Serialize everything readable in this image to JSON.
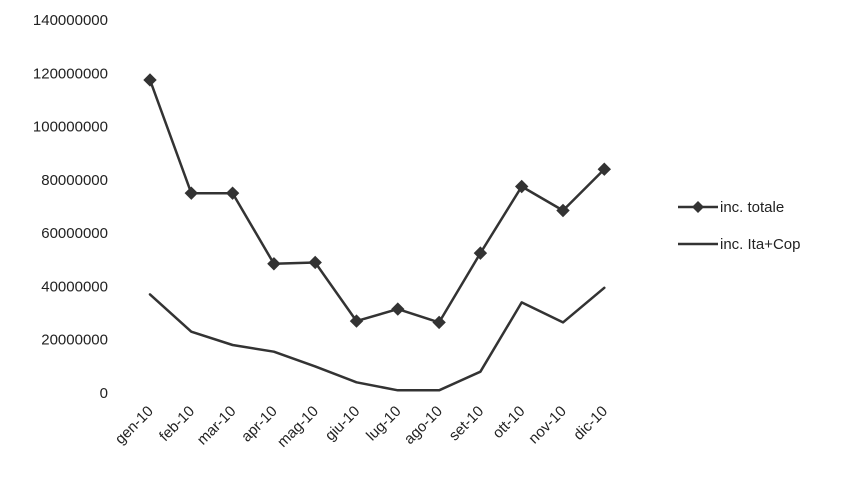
{
  "chart_data": {
    "type": "line",
    "title": "",
    "xlabel": "",
    "ylabel": "",
    "categories": [
      "gen-10",
      "feb-10",
      "mar-10",
      "apr-10",
      "mag-10",
      "giu-10",
      "lug-10",
      "ago-10",
      "set-10",
      "ott-10",
      "nov-10",
      "dic-10"
    ],
    "ylim": [
      0,
      140000000
    ],
    "yticks": [
      "0",
      "20000000",
      "40000000",
      "60000000",
      "80000000",
      "100000000",
      "120000000",
      "140000000"
    ],
    "grid": false,
    "legend_position": "right",
    "series": [
      {
        "name": "inc. totale",
        "marker": "diamond",
        "color": "#333333",
        "values": [
          117500000,
          75000000,
          75000000,
          48500000,
          49000000,
          27000000,
          31500000,
          26500000,
          52500000,
          77500000,
          68500000,
          84000000
        ]
      },
      {
        "name": "inc. Ita+Cop",
        "marker": "none",
        "color": "#333333",
        "values": [
          37000000,
          23000000,
          18000000,
          15500000,
          10000000,
          4000000,
          1000000,
          1000000,
          8000000,
          34000000,
          26500000,
          39500000
        ]
      }
    ]
  }
}
